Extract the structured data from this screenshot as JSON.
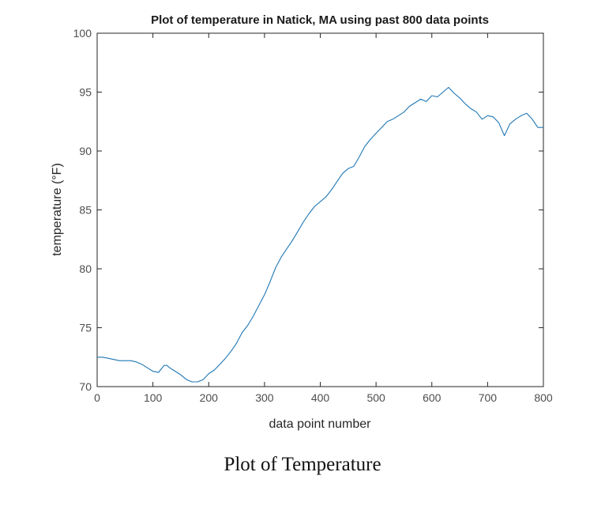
{
  "caption": "Plot of Temperature",
  "colors": {
    "line": "#1f77b4",
    "axis": "#262626",
    "background": "#ffffff"
  },
  "chart_data": {
    "type": "line",
    "title": "Plot of temperature in Natick, MA using past 800 data points",
    "xlabel": "data point number",
    "ylabel": "temperature (°F)",
    "xlim": [
      0,
      800
    ],
    "ylim": [
      70,
      100
    ],
    "xticks": [
      0,
      100,
      200,
      300,
      400,
      500,
      600,
      700,
      800
    ],
    "yticks": [
      70,
      75,
      80,
      85,
      90,
      95,
      100
    ],
    "grid": false,
    "box": true,
    "series": [
      {
        "x": [
          0,
          10,
          20,
          30,
          40,
          50,
          60,
          70,
          80,
          90,
          100,
          110,
          115,
          120,
          125,
          130,
          140,
          150,
          160,
          170,
          180,
          190,
          200,
          210,
          220,
          230,
          240,
          250,
          260,
          270,
          280,
          290,
          300,
          310,
          320,
          330,
          340,
          350,
          360,
          370,
          380,
          390,
          400,
          410,
          420,
          430,
          440,
          450,
          460,
          470,
          480,
          490,
          500,
          510,
          520,
          530,
          540,
          550,
          560,
          570,
          580,
          590,
          600,
          610,
          620,
          630,
          640,
          650,
          660,
          670,
          680,
          690,
          700,
          710,
          720,
          730,
          740,
          750,
          760,
          770,
          780,
          790,
          800
        ],
        "values": [
          72.5,
          72.5,
          72.4,
          72.3,
          72.2,
          72.2,
          72.2,
          72.1,
          71.9,
          71.6,
          71.3,
          71.2,
          71.5,
          71.8,
          71.8,
          71.6,
          71.3,
          71.0,
          70.6,
          70.4,
          70.4,
          70.6,
          71.1,
          71.4,
          71.9,
          72.4,
          73.0,
          73.7,
          74.6,
          75.2,
          76.0,
          76.9,
          77.8,
          78.9,
          80.1,
          81.0,
          81.7,
          82.4,
          83.2,
          84.0,
          84.7,
          85.3,
          85.7,
          86.1,
          86.7,
          87.4,
          88.1,
          88.5,
          88.7,
          89.5,
          90.4,
          91.0,
          91.5,
          92.0,
          92.5,
          92.7,
          93.0,
          93.3,
          93.8,
          94.1,
          94.4,
          94.2,
          94.7,
          94.6,
          95.0,
          95.4,
          94.9,
          94.5,
          94.0,
          93.6,
          93.3,
          92.7,
          93.0,
          92.9,
          92.4,
          91.3,
          92.3,
          92.7,
          93.0,
          93.2,
          92.7,
          92.0,
          92.0
        ]
      }
    ]
  }
}
